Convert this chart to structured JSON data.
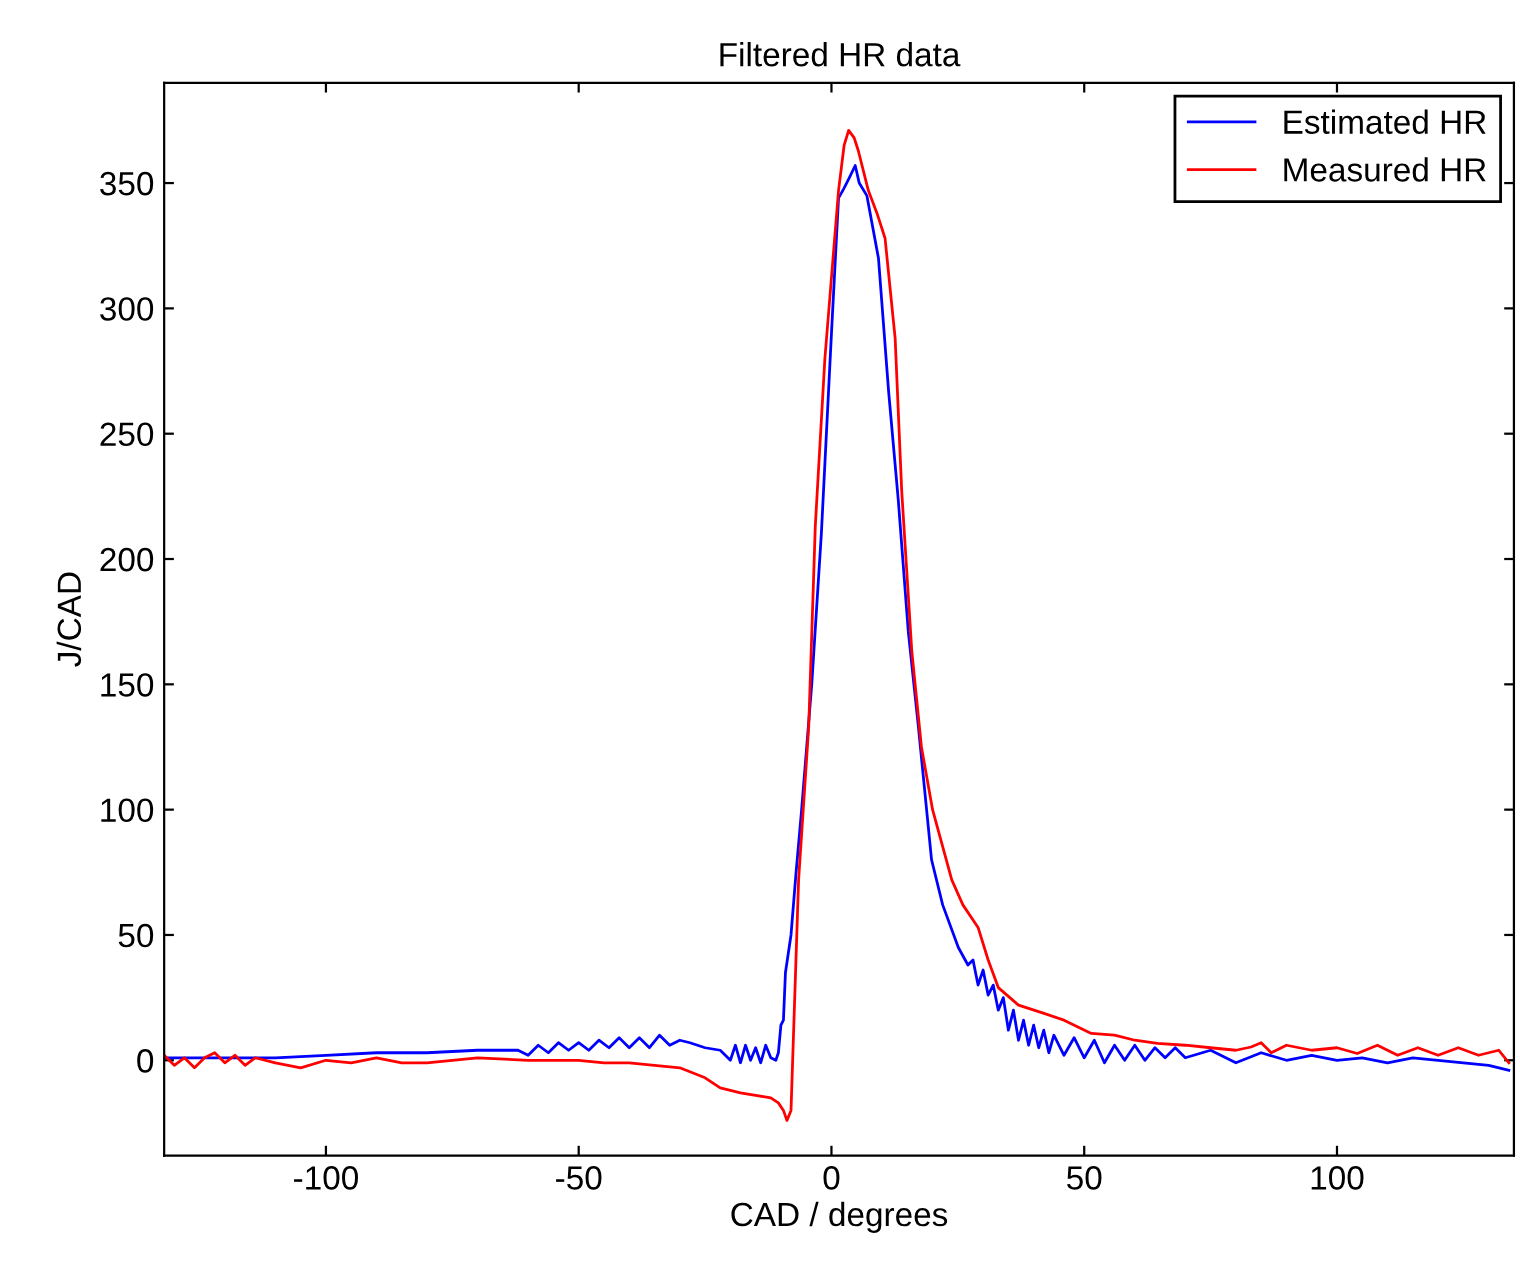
{
  "chart_data": {
    "type": "line",
    "title": "Filtered HR data",
    "xlabel": "CAD / degrees",
    "ylabel": "J/CAD",
    "xlim": [
      -132,
      135
    ],
    "ylim": [
      -38,
      390
    ],
    "xticks": [
      -100,
      -50,
      0,
      50,
      100
    ],
    "yticks": [
      0,
      50,
      100,
      150,
      200,
      250,
      300,
      350
    ],
    "grid": false,
    "legend": "top right",
    "marker": "none",
    "line_style": "solid",
    "series": [
      {
        "name": "Estimated HR",
        "color": "#0000ff",
        "x": [
          -132,
          -120,
          -110,
          -100,
          -90,
          -80,
          -70,
          -62,
          -60,
          -58,
          -56,
          -54,
          -52,
          -50,
          -48,
          -46,
          -44,
          -42,
          -40,
          -38,
          -36,
          -34,
          -32,
          -30,
          -28,
          -25,
          -22,
          -20,
          -19,
          -18,
          -17,
          -16,
          -15,
          -14,
          -13,
          -12,
          -11,
          -10.5,
          -10,
          -9.5,
          -9.1,
          -8,
          -7,
          -5.9,
          -3.9,
          -2,
          0,
          1.4,
          2.5,
          3.5,
          4.7,
          5.5,
          7,
          9.3,
          11.3,
          13.2,
          15.2,
          17.2,
          19.8,
          22,
          25.1,
          27,
          28,
          29,
          30,
          31,
          32,
          33,
          34,
          35,
          36,
          37,
          38,
          39,
          40,
          41,
          42,
          43,
          44,
          46,
          48,
          50,
          52,
          54,
          56,
          58,
          60,
          62,
          64,
          66,
          68,
          70,
          75,
          80,
          85,
          90,
          95,
          100,
          105,
          110,
          115,
          120,
          125,
          130,
          134
        ],
        "values": [
          1,
          1,
          1,
          2,
          3,
          3,
          4,
          4,
          2,
          6,
          3,
          7,
          4,
          7,
          4,
          8,
          5,
          9,
          5,
          9,
          5,
          10,
          6,
          8,
          7,
          5,
          4,
          0,
          6,
          -1,
          6,
          0,
          5,
          -1,
          6,
          1,
          0,
          3,
          14,
          16,
          35,
          50,
          75,
          100,
          150,
          210,
          290,
          344,
          348,
          352,
          357,
          350,
          345,
          320,
          267,
          224,
          171,
          133,
          80,
          62,
          45,
          38,
          40,
          30,
          36,
          26,
          30,
          20,
          25,
          12,
          20,
          8,
          16,
          6,
          14,
          5,
          12,
          3,
          10,
          2,
          9,
          1,
          8,
          -1,
          6,
          0,
          6,
          0,
          5,
          1,
          5,
          1,
          4,
          -1,
          3,
          0,
          2,
          0,
          1,
          -1,
          1,
          0,
          -1,
          -2,
          -4
        ]
      },
      {
        "name": "Measured HR",
        "color": "#ff0000",
        "x": [
          -132,
          -130,
          -128,
          -126,
          -124,
          -122,
          -120,
          -118,
          -116,
          -114,
          -110,
          -105,
          -100,
          -95,
          -90,
          -85,
          -80,
          -75,
          -70,
          -60,
          -50,
          -45,
          -40,
          -35,
          -30,
          -25,
          -22,
          -18,
          -15,
          -12,
          -10.5,
          -9.5,
          -8.8,
          -8,
          -6.5,
          -4.5,
          -3.2,
          -1.3,
          1.4,
          2.5,
          3.4,
          4.5,
          5.3,
          7.3,
          9,
          10.6,
          12.6,
          13.9,
          15.9,
          17.8,
          20,
          23.8,
          26,
          29,
          31,
          33,
          37,
          42.2,
          46,
          51.4,
          56,
          60,
          64.5,
          70,
          75,
          80,
          83,
          85,
          87,
          90,
          95,
          100,
          104,
          108,
          112,
          116,
          120,
          124,
          128,
          132,
          134
        ],
        "values": [
          2,
          -2,
          1,
          -3,
          1,
          3,
          -1,
          2,
          -2,
          1,
          -1,
          -3,
          0,
          -1,
          1,
          -1,
          -1,
          0,
          1,
          0,
          0,
          -1,
          -1,
          -2,
          -3,
          -7,
          -11,
          -13,
          -14,
          -15,
          -17,
          -20,
          -24,
          -20,
          72,
          133,
          213,
          280,
          347,
          365,
          371,
          368,
          363,
          347,
          338,
          328,
          288,
          227,
          163,
          125,
          100,
          72,
          62,
          53,
          40,
          29,
          22,
          18.6,
          16,
          10.7,
          10,
          8,
          6.7,
          6,
          5,
          4,
          5.3,
          7,
          3,
          6,
          4,
          5,
          2.7,
          6,
          2,
          5,
          2,
          5,
          2,
          4,
          -1
        ]
      }
    ]
  }
}
